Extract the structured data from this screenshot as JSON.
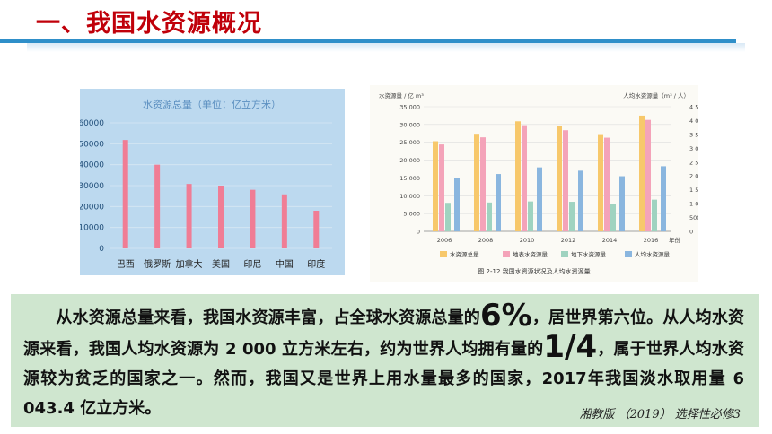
{
  "slide": {
    "title": "一、我国水资源概况"
  },
  "chart_data": [
    {
      "type": "bar",
      "title": "水资源总量（单位：亿立方米）",
      "categories": [
        "巴西",
        "俄罗斯",
        "加拿大",
        "美国",
        "印尼",
        "中国",
        "印度"
      ],
      "values": [
        51800,
        40000,
        30800,
        30000,
        28000,
        25800,
        18000
      ],
      "yticks": [
        "0",
        "10000",
        "20000",
        "30000",
        "40000",
        "50000",
        "60000"
      ],
      "ylim": [
        0,
        60000
      ],
      "colors": {
        "bar": "#f07d95",
        "background": "#bcd9ef",
        "grid": "#d6e7f4",
        "text": "#1f4d78"
      }
    },
    {
      "type": "bar",
      "caption": "图 2-12  我国水资源状况及人均水资源量",
      "ylabel_left": "水资源量 / 亿 m³",
      "ylabel_right": "人均水资源量（m³ / 人）",
      "xlabel_suffix": "年份",
      "categories": [
        "2006",
        "2008",
        "2010",
        "2012",
        "2014",
        "2016"
      ],
      "series": [
        {
          "name": "水资源总量",
          "values": [
            25300,
            27400,
            30900,
            29500,
            27300,
            32500
          ],
          "color": "#f7c86b"
        },
        {
          "name": "地表水资源量",
          "values": [
            24400,
            26400,
            29800,
            28400,
            26300,
            31300
          ],
          "color": "#f4a3b9"
        },
        {
          "name": "地下水资源量",
          "values": [
            8000,
            8100,
            8400,
            8300,
            7700,
            8900
          ],
          "color": "#9fd3c0"
        },
        {
          "name": "人均水资源量",
          "values": [
            1940,
            2070,
            2310,
            2190,
            1990,
            2350
          ],
          "color": "#8ab6df",
          "axis": "right"
        }
      ],
      "yticks_left": [
        "0",
        "5 000",
        "10 000",
        "15 000",
        "20 000",
        "25 000",
        "30 000",
        "35 000"
      ],
      "yticks_right": [
        "0",
        "500",
        "1 000",
        "1 500",
        "2 000",
        "2 500",
        "3 000",
        "3 500",
        "4 000",
        "4 500"
      ],
      "ylim_left": [
        0,
        35000
      ],
      "ylim_right": [
        0,
        4500
      ]
    }
  ],
  "text": {
    "p1": "从水资源总量来看，我国水资源丰富，占全球水资源总量的",
    "p1_big": "6%",
    "p2": "，居世界第六位。从人均水资源来看，我国人均水资源为 2 000 立方米左右，约为世界人均拥有量的",
    "p2_big": "1/4",
    "p3": "，属于世界人均水资源较为贫乏的国家之一。然而，我国又是世界上用水量最多的国家，2017年我国淡水取用量 6 043.4 亿立方米。",
    "credit": "湘教版 （2019） 选择性必修3"
  }
}
